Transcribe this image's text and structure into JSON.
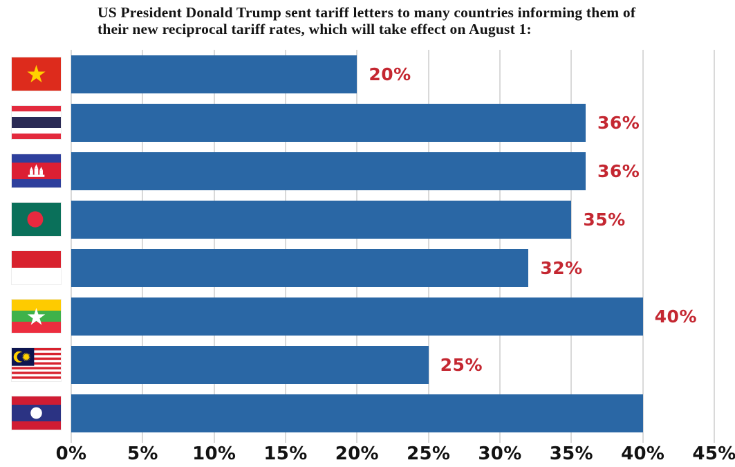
{
  "title": "US President Donald Trump sent tariff letters to many countries informing them of their new reciprocal tariff rates, which will take effect on August 1:",
  "chart_data": {
    "type": "bar",
    "orientation": "horizontal",
    "title": "US President Donald Trump sent tariff letters to many countries informing them of their new reciprocal tariff rates, which will take effect on August 1:",
    "categories": [
      "Vietnam",
      "Thailand",
      "Cambodia",
      "Bangladesh",
      "Indonesia",
      "Myanmar",
      "Malaysia",
      "Laos"
    ],
    "category_icons": [
      "flag-vietnam",
      "flag-thailand",
      "flag-cambodia",
      "flag-bangladesh",
      "flag-indonesia",
      "flag-myanmar",
      "flag-malaysia",
      "flag-laos"
    ],
    "values": [
      20,
      36,
      36,
      35,
      32,
      40,
      25,
      40
    ],
    "data_labels": [
      "20%",
      "36%",
      "36%",
      "35%",
      "32%",
      "40%",
      "25%",
      ""
    ],
    "x_ticks": [
      "0%",
      "5%",
      "10%",
      "15%",
      "20%",
      "25%",
      "30%",
      "35%",
      "40%",
      "45%"
    ],
    "xlim": [
      0,
      45
    ],
    "xlabel": "",
    "ylabel": "",
    "grid": true,
    "legend": "none",
    "bar_color": "#2a67a5",
    "data_label_color": "#c42731",
    "axis_text_color": "#121212",
    "gridline_color": "#d9d9d9"
  }
}
